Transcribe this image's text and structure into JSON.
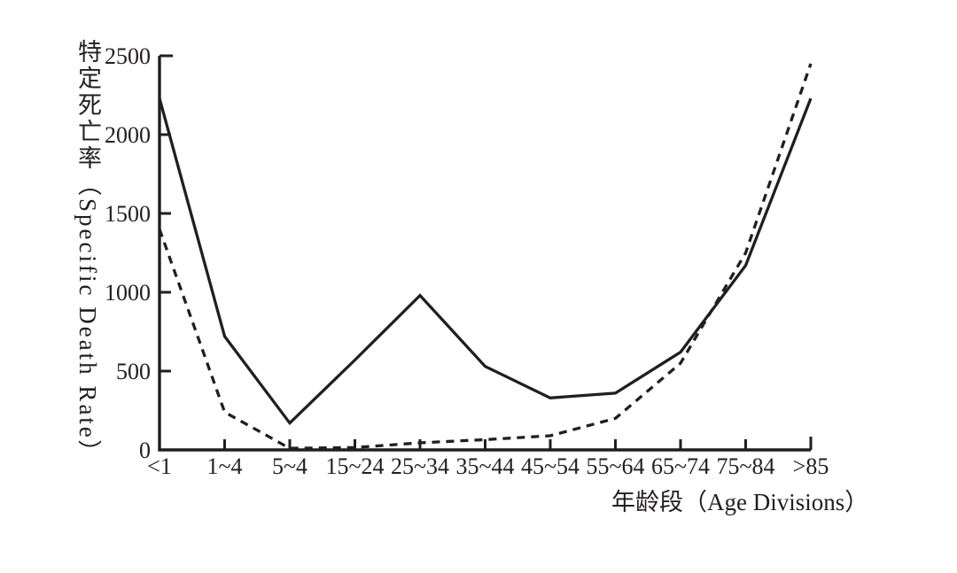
{
  "chart_data": {
    "type": "line",
    "title": "",
    "categories": [
      "<1",
      "1~4",
      "5~4",
      "15~24",
      "25~34",
      "35~44",
      "45~54",
      "55~64",
      "65~74",
      "75~84",
      ">85"
    ],
    "series": [
      {
        "name": "solid-line",
        "style": "solid",
        "values": [
          2230,
          720,
          170,
          570,
          980,
          530,
          330,
          360,
          620,
          1170,
          2230
        ]
      },
      {
        "name": "dashed-line",
        "style": "dashed",
        "values": [
          1400,
          240,
          10,
          15,
          45,
          65,
          90,
          200,
          550,
          1250,
          2450
        ]
      }
    ],
    "xlabel": "年龄段（Age Divisions）",
    "ylabel": "特定死亡率（Specific Death Rate）",
    "y_ticks": [
      0,
      500,
      1000,
      1500,
      2000,
      2500
    ],
    "y_tick_labels": [
      "0",
      "500",
      "1000",
      "1500",
      "2000",
      "2500"
    ],
    "ylim": [
      0,
      2500
    ],
    "grid": false,
    "legend": "none",
    "line_color": "#221e1f",
    "background": "#ffffff"
  }
}
